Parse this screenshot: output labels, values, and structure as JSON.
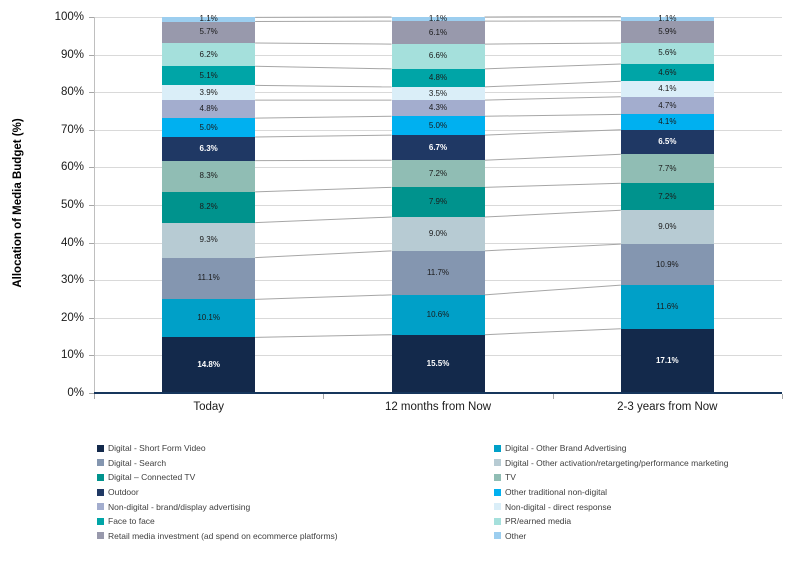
{
  "chart_data": {
    "type": "bar",
    "stacked": true,
    "title": "",
    "xlabel": "",
    "ylabel": "Allocation of Media Budget (%)",
    "categories": [
      "Today",
      "12 months from Now",
      "2-3 years from Now"
    ],
    "ylim": [
      0,
      100
    ],
    "y_ticks": [
      "0%",
      "10%",
      "20%",
      "30%",
      "40%",
      "50%",
      "60%",
      "70%",
      "80%",
      "90%",
      "100%"
    ],
    "grid": true,
    "legend_position": "bottom",
    "colors": {
      "x_axis": "#16365C",
      "y_axis": "#BFBFBF",
      "gridline": "#D9D9D9",
      "connector": "#A6A6A6",
      "tick": "#A6A6A6",
      "data_label_dark": "#1A1A1A",
      "data_label_light": "#FFFFFF"
    },
    "series": [
      {
        "name": "Digital - Short Form Video",
        "color": "#13294B",
        "values": [
          14.8,
          15.5,
          17.1
        ],
        "label_white": true
      },
      {
        "name": "Digital - Other Brand Advertising",
        "color": "#00A0C8",
        "values": [
          10.1,
          10.6,
          11.6
        ],
        "label_white": false
      },
      {
        "name": "Digital - Search",
        "color": "#8496B0",
        "values": [
          11.1,
          11.7,
          10.9
        ],
        "label_white": false
      },
      {
        "name": "Digital - Other activation/retargeting/performance marketing",
        "color": "#B7CBD3",
        "values": [
          9.3,
          9.0,
          9.0
        ],
        "label_white": false
      },
      {
        "name": "Digital – Connected TV",
        "color": "#00938D",
        "values": [
          8.2,
          7.9,
          7.2
        ],
        "label_white": false
      },
      {
        "name": "TV",
        "color": "#90BDB4",
        "values": [
          8.3,
          7.2,
          7.7
        ],
        "label_white": false
      },
      {
        "name": "Outdoor",
        "color": "#1F3864",
        "values": [
          6.3,
          6.7,
          6.5
        ],
        "label_white": true
      },
      {
        "name": "Other traditional non-digital",
        "color": "#00B0F0",
        "values": [
          5.0,
          5.0,
          4.1
        ],
        "label_white": false
      },
      {
        "name": "Non-digital - brand/display advertising",
        "color": "#A3ADCE",
        "values": [
          4.8,
          4.3,
          4.7
        ],
        "label_white": false
      },
      {
        "name": "Non-digital - direct response",
        "color": "#DAEEF8",
        "values": [
          3.9,
          3.5,
          4.1
        ],
        "label_white": false
      },
      {
        "name": "Face to face",
        "color": "#00A5A7",
        "values": [
          5.1,
          4.8,
          4.6
        ],
        "label_white": false
      },
      {
        "name": "PR/earned media",
        "color": "#A5E0DC",
        "values": [
          6.2,
          6.6,
          5.6
        ],
        "label_white": false
      },
      {
        "name": "Retail media investment (ad spend on ecommerce platforms)",
        "color": "#9899AC",
        "values": [
          5.7,
          6.1,
          5.9
        ],
        "label_white": false
      },
      {
        "name": "Other",
        "color": "#9CCEEF",
        "values": [
          1.1,
          1.1,
          1.1
        ],
        "label_white": false
      }
    ],
    "legend_columns": [
      [
        0,
        2,
        4,
        6,
        8,
        10,
        12
      ],
      [
        1,
        3,
        5,
        7,
        9,
        11,
        13
      ]
    ]
  }
}
